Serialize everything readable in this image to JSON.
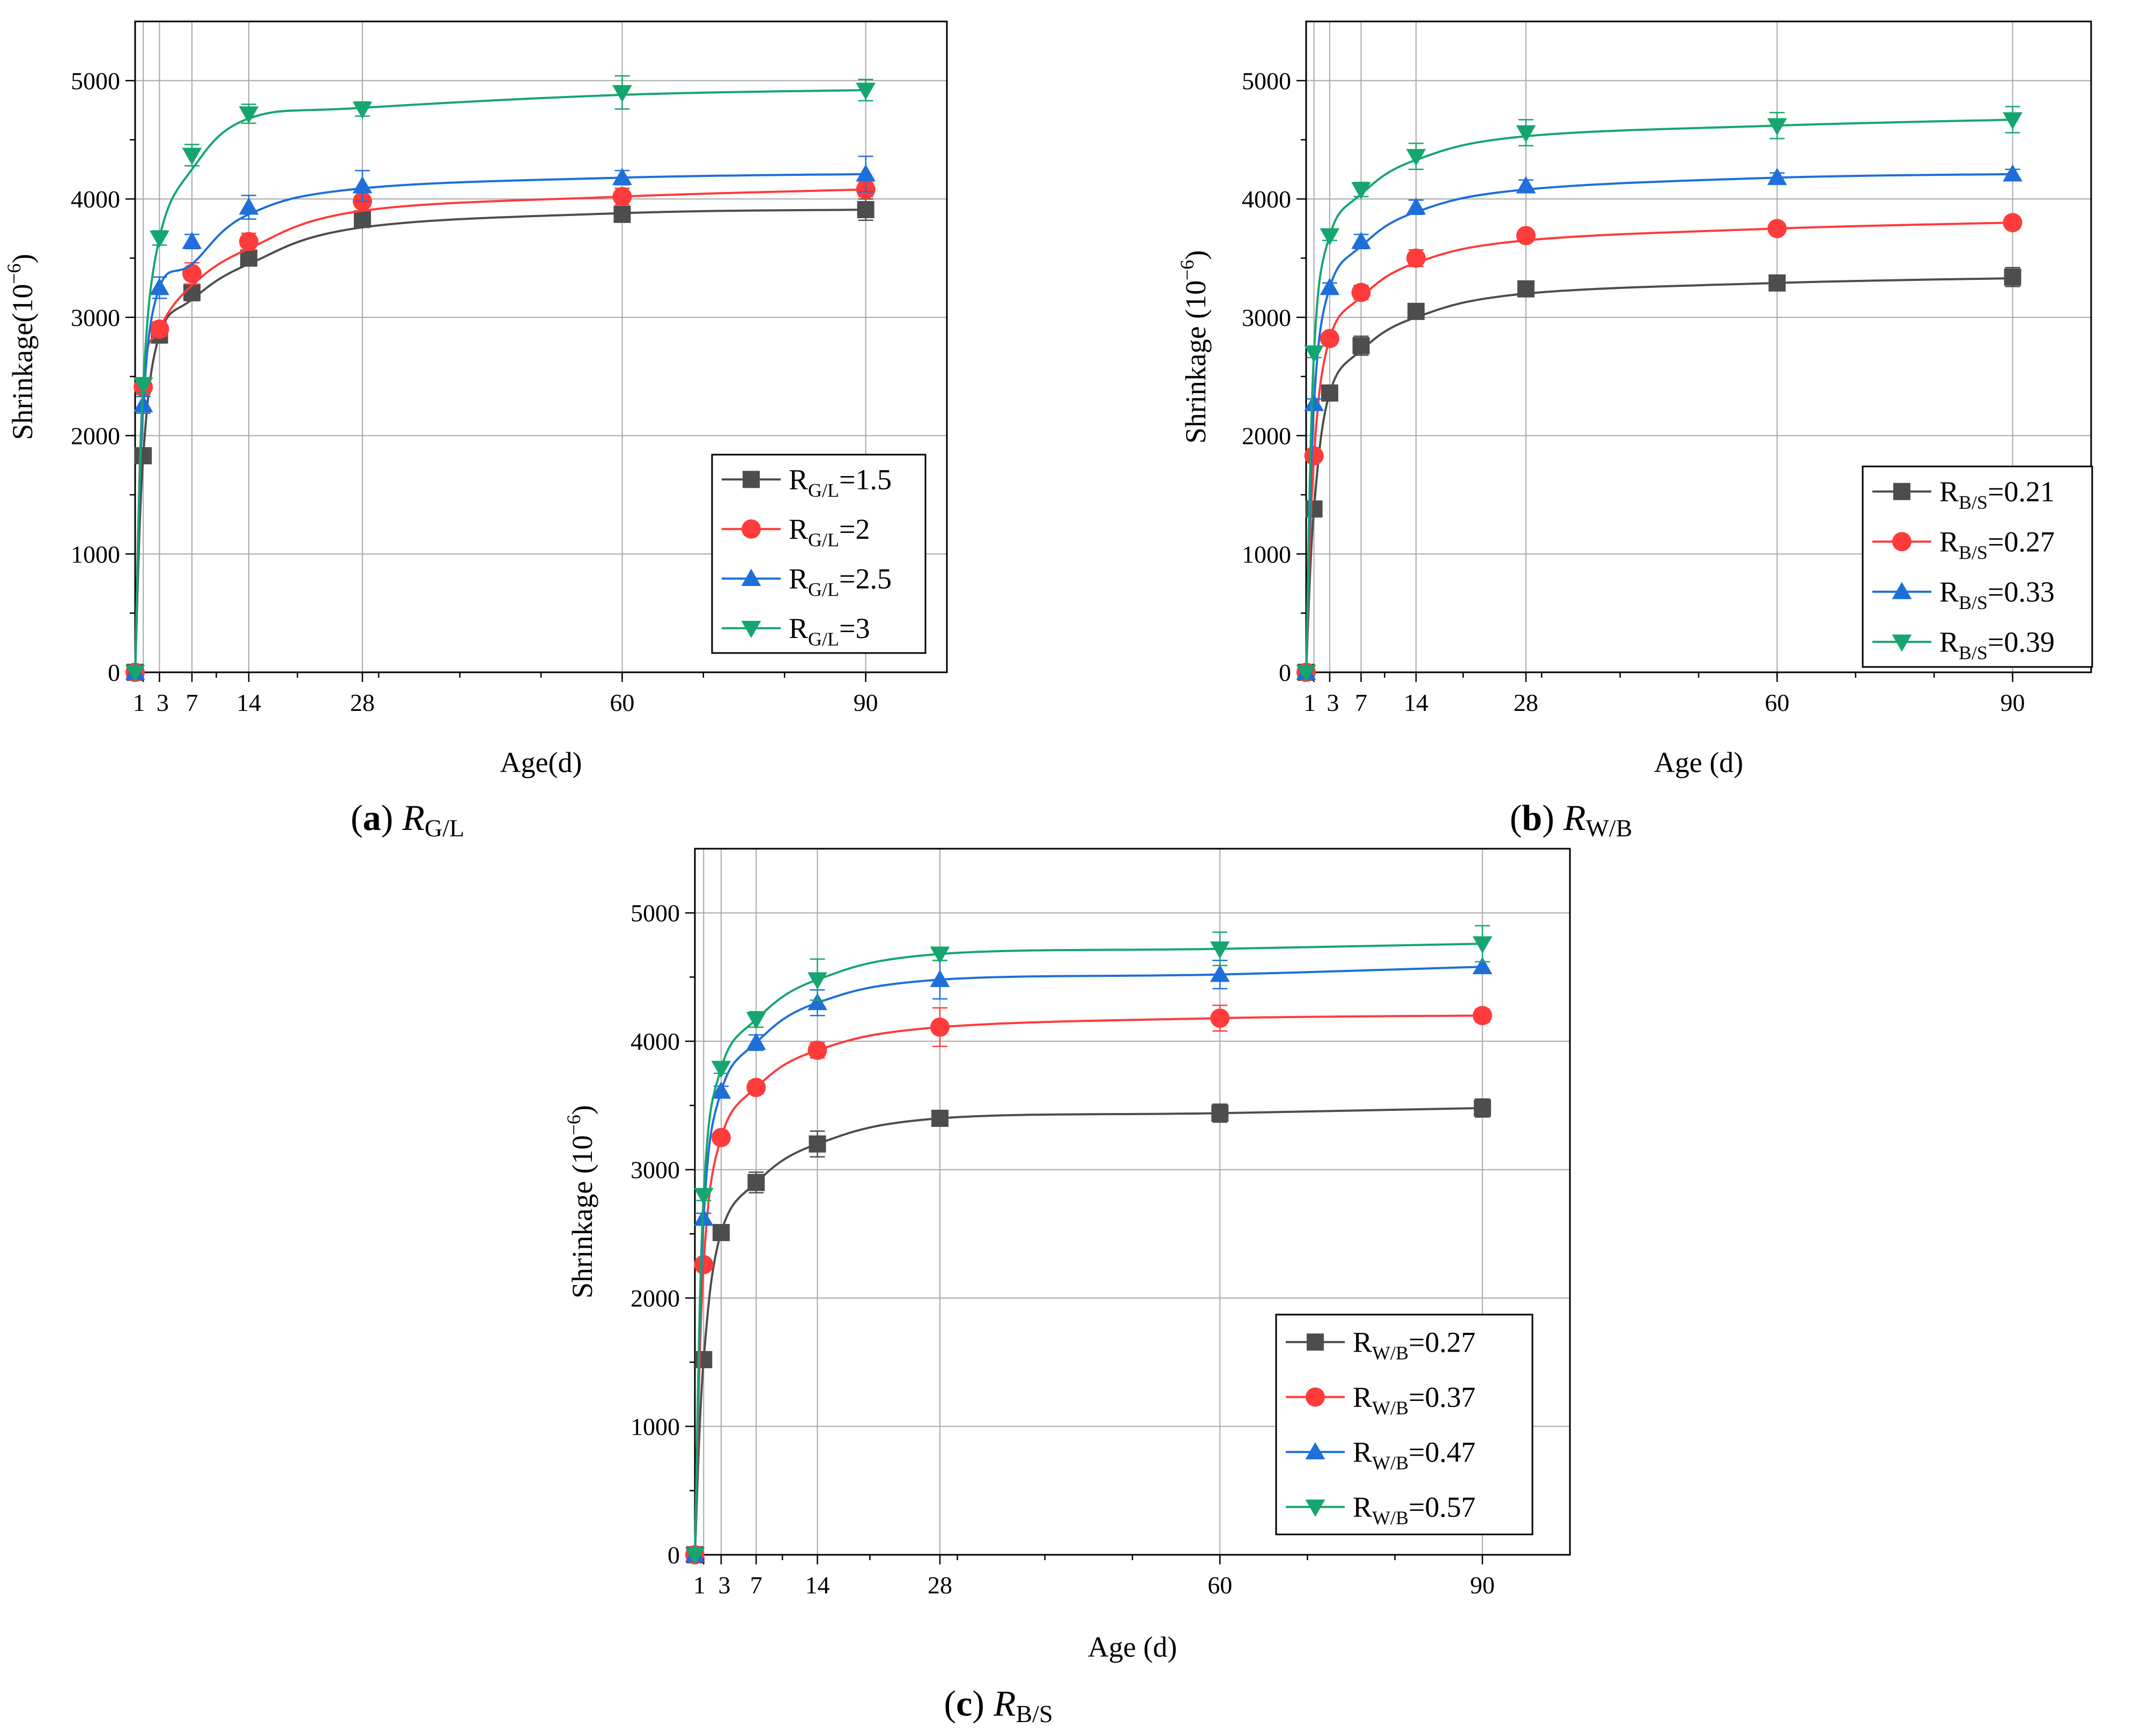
{
  "chart_data": [
    {
      "type": "line",
      "caption": {
        "paren_open": "(",
        "letter": "a",
        "paren_close": ")",
        "var": "R",
        "sub": "G/L"
      },
      "xlabel": "Age(d)",
      "ylabel": {
        "main": "Shrinkage(10",
        "exp": "−6",
        "close": ")"
      },
      "xlim": [
        0,
        100
      ],
      "ylim": [
        0,
        5500
      ],
      "x_ticks": [
        1,
        3,
        7,
        14,
        28,
        60,
        90
      ],
      "x_tick_labels": [
        "1",
        "3",
        "7",
        "14",
        "28",
        "60",
        "90"
      ],
      "y_ticks": [
        0,
        1000,
        2000,
        3000,
        4000,
        5000
      ],
      "y_tick_labels": [
        "0",
        "1000",
        "2000",
        "3000",
        "4000",
        "5000"
      ],
      "grid": true,
      "legend_position": "bottom-right",
      "x": [
        0,
        1,
        3,
        7,
        14,
        28,
        60,
        90
      ],
      "series": [
        {
          "name": "R_G/L=1.5",
          "label_main": "R",
          "label_sub": "G/L",
          "label_rest": "=1.5",
          "color": "#4d4d4d",
          "marker": "square",
          "values": [
            0,
            1830,
            2850,
            3210,
            3500,
            3830,
            3870,
            3910
          ],
          "errors": [
            0,
            60,
            60,
            70,
            60,
            70,
            60,
            90
          ],
          "fit": [
            0,
            1830,
            2850,
            3150,
            3450,
            3760,
            3880,
            3910
          ]
        },
        {
          "name": "R_G/L=2",
          "label_main": "R",
          "label_sub": "G/L",
          "label_rest": "=2",
          "color": "#ff3b3b",
          "marker": "circle",
          "values": [
            0,
            2410,
            2900,
            3370,
            3640,
            3980,
            4020,
            4080
          ],
          "errors": [
            0,
            60,
            60,
            90,
            70,
            80,
            70,
            60
          ],
          "fit": [
            0,
            2410,
            2900,
            3270,
            3580,
            3900,
            4020,
            4080
          ]
        },
        {
          "name": "R_G/L=2.5",
          "label_main": "R",
          "label_sub": "G/L",
          "label_rest": "=2.5",
          "color": "#1e6fd9",
          "marker": "triangle-up",
          "values": [
            0,
            2260,
            3250,
            3640,
            3930,
            4110,
            4180,
            4210
          ],
          "errors": [
            0,
            70,
            90,
            60,
            100,
            130,
            60,
            150
          ],
          "fit": [
            0,
            2260,
            3250,
            3450,
            3870,
            4090,
            4180,
            4210
          ]
        },
        {
          "name": "R_G/L=3",
          "label_main": "R",
          "label_sub": "G/L",
          "label_rest": "=3",
          "color": "#15a66f",
          "marker": "triangle-down",
          "values": [
            0,
            2430,
            3670,
            4370,
            4720,
            4760,
            4900,
            4920
          ],
          "errors": [
            0,
            60,
            60,
            90,
            80,
            60,
            140,
            90
          ],
          "fit": [
            0,
            2430,
            3670,
            4250,
            4680,
            4770,
            4880,
            4920
          ]
        }
      ]
    },
    {
      "type": "line",
      "caption": {
        "paren_open": "(",
        "letter": "b",
        "paren_close": ")",
        "var": "R",
        "sub": "W/B"
      },
      "xlabel": "Age (d)",
      "ylabel": {
        "main": "Shrinkage  (10",
        "exp": "−6",
        "close": ")"
      },
      "xlim": [
        0,
        100
      ],
      "ylim": [
        0,
        5500
      ],
      "x_ticks": [
        1,
        3,
        7,
        14,
        28,
        60,
        90
      ],
      "x_tick_labels": [
        "1",
        "3",
        "7",
        "14",
        "28",
        "60",
        "90"
      ],
      "y_ticks": [
        0,
        1000,
        2000,
        3000,
        4000,
        5000
      ],
      "y_tick_labels": [
        "0",
        "1000",
        "2000",
        "3000",
        "4000",
        "5000"
      ],
      "grid": true,
      "legend_position": "bottom-right",
      "x": [
        0,
        1,
        3,
        7,
        14,
        28,
        60,
        90
      ],
      "series": [
        {
          "name": "R_B/S=0.21",
          "label_main": "R",
          "label_sub": "B/S",
          "label_rest": "=0.21",
          "color": "#4d4d4d",
          "marker": "square",
          "values": [
            0,
            1380,
            2360,
            2760,
            3050,
            3240,
            3290,
            3340
          ],
          "errors": [
            0,
            40,
            40,
            80,
            40,
            50,
            40,
            80
          ],
          "fit": [
            0,
            1380,
            2360,
            2720,
            3000,
            3200,
            3290,
            3330
          ]
        },
        {
          "name": "R_B/S=0.27",
          "label_main": "R",
          "label_sub": "B/S",
          "label_rest": "=0.27",
          "color": "#ff3b3b",
          "marker": "circle",
          "values": [
            0,
            1830,
            2820,
            3210,
            3500,
            3690,
            3750,
            3800
          ],
          "errors": [
            0,
            40,
            40,
            60,
            70,
            40,
            40,
            50
          ],
          "fit": [
            0,
            1830,
            2820,
            3170,
            3460,
            3650,
            3750,
            3800
          ]
        },
        {
          "name": "R_B/S=0.33",
          "label_main": "R",
          "label_sub": "B/S",
          "label_rest": "=0.33",
          "color": "#1e6fd9",
          "marker": "triangle-up",
          "values": [
            0,
            2270,
            3250,
            3640,
            3930,
            4110,
            4180,
            4210
          ],
          "errors": [
            0,
            40,
            40,
            60,
            60,
            50,
            40,
            40
          ],
          "fit": [
            0,
            2270,
            3250,
            3600,
            3890,
            4080,
            4180,
            4210
          ]
        },
        {
          "name": "R_B/S=0.39",
          "label_main": "R",
          "label_sub": "B/S",
          "label_rest": "=0.39",
          "color": "#15a66f",
          "marker": "triangle-down",
          "values": [
            0,
            2700,
            3690,
            4080,
            4360,
            4560,
            4620,
            4670
          ],
          "errors": [
            0,
            40,
            40,
            60,
            110,
            110,
            110,
            110
          ],
          "fit": [
            0,
            2700,
            3690,
            4040,
            4330,
            4530,
            4620,
            4670
          ]
        }
      ]
    },
    {
      "type": "line",
      "caption": {
        "paren_open": "(",
        "letter": "c",
        "paren_close": ")",
        "var": "R",
        "sub": "B/S"
      },
      "xlabel": "Age (d)",
      "ylabel": {
        "main": "Shrinkage (10",
        "exp": "−6",
        "close": ")"
      },
      "xlim": [
        0,
        100
      ],
      "ylim": [
        0,
        5500
      ],
      "x_ticks": [
        1,
        3,
        7,
        14,
        28,
        60,
        90
      ],
      "x_tick_labels": [
        "1",
        "3",
        "7",
        "14",
        "28",
        "60",
        "90"
      ],
      "y_ticks": [
        0,
        1000,
        2000,
        3000,
        4000,
        5000
      ],
      "y_tick_labels": [
        "0",
        "1000",
        "2000",
        "3000",
        "4000",
        "5000"
      ],
      "grid": true,
      "legend_position": "bottom-right",
      "x": [
        0,
        1,
        3,
        7,
        14,
        28,
        60,
        90
      ],
      "series": [
        {
          "name": "R_W/B=0.27",
          "label_main": "R",
          "label_sub": "W/B",
          "label_rest": "=0.27",
          "color": "#4d4d4d",
          "marker": "square",
          "values": [
            0,
            1520,
            2510,
            2900,
            3200,
            3400,
            3440,
            3480
          ],
          "errors": [
            0,
            50,
            50,
            80,
            100,
            40,
            70,
            70
          ],
          "fit": [
            0,
            1520,
            2510,
            2900,
            3200,
            3400,
            3440,
            3480
          ]
        },
        {
          "name": "R_W/B=0.37",
          "label_main": "R",
          "label_sub": "W/B",
          "label_rest": "=0.37",
          "color": "#ff3b3b",
          "marker": "circle",
          "values": [
            0,
            2260,
            3250,
            3640,
            3930,
            4110,
            4180,
            4200
          ],
          "errors": [
            0,
            40,
            40,
            50,
            60,
            150,
            100,
            50
          ],
          "fit": [
            0,
            2260,
            3250,
            3640,
            3930,
            4110,
            4180,
            4200
          ]
        },
        {
          "name": "R_W/B=0.47",
          "label_main": "R",
          "label_sub": "W/B",
          "label_rest": "=0.47",
          "color": "#1e6fd9",
          "marker": "triangle-up",
          "values": [
            0,
            2620,
            3610,
            3990,
            4300,
            4480,
            4520,
            4580
          ],
          "errors": [
            0,
            40,
            40,
            60,
            100,
            150,
            110,
            40
          ],
          "fit": [
            0,
            2620,
            3610,
            3990,
            4300,
            4480,
            4520,
            4580
          ]
        },
        {
          "name": "R_W/B=0.57",
          "label_main": "R",
          "label_sub": "W/B",
          "label_rest": "=0.57",
          "color": "#15a66f",
          "marker": "triangle-down",
          "values": [
            0,
            2800,
            3790,
            4170,
            4480,
            4680,
            4720,
            4760
          ],
          "errors": [
            0,
            40,
            40,
            60,
            160,
            50,
            130,
            140
          ],
          "fit": [
            0,
            2800,
            3790,
            4170,
            4480,
            4680,
            4720,
            4760
          ]
        }
      ]
    }
  ]
}
